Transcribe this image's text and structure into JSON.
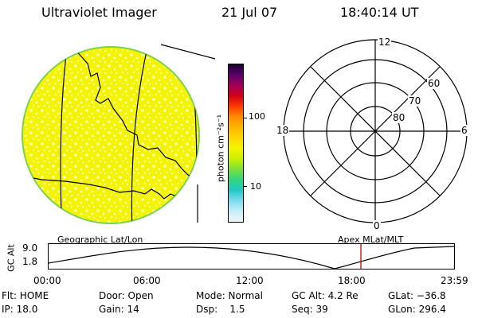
{
  "header": {
    "instrument": "Ultraviolet Imager",
    "date": "21 Jul 07",
    "time": "18:40:14 UT"
  },
  "map_left": {
    "label": "Geographic Lat/Lon",
    "fill_color": "#f4f400",
    "edge_color": "#7fd24a"
  },
  "colorbar": {
    "unit_label": "photon cm⁻²s⁻¹",
    "ticks": [
      "100",
      "10"
    ],
    "colors_top_to_bottom": [
      "#1a0030",
      "#5a006a",
      "#a0005a",
      "#d4001a",
      "#ff3a00",
      "#ff8c00",
      "#ffb400",
      "#ffd800",
      "#f4f400",
      "#c8f000",
      "#7ce03a",
      "#2fd67e",
      "#22c8c8",
      "#7cdcf0",
      "#c6eef8",
      "#eef6f8"
    ]
  },
  "polar_plot": {
    "label": "Apex MLat/MLT",
    "mlt_labels": {
      "top": "12",
      "right": "6",
      "bottom": "0",
      "left": "18"
    },
    "lat_labels": [
      "60",
      "70",
      "80"
    ]
  },
  "orbit_plot": {
    "ylabel": "GC Alt",
    "y_ticks": [
      "9.0",
      "1.8"
    ],
    "x_ticks": [
      "00:00",
      "06:00",
      "12:00",
      "18:00",
      "23:59"
    ],
    "marker_color": "#cc0000"
  },
  "status": {
    "row1": {
      "flt": "Flt: HOME",
      "door": "Door: Open",
      "mode": "Mode: Normal",
      "gc_alt": "GC Alt: 4.2 Re",
      "glat": "GLat: −36.8"
    },
    "row2": {
      "ip": "IP: 18.0",
      "gain": "Gain: 14",
      "dsp": "Dsp:    1.5",
      "seq": "Seq: 39",
      "glon": "GLon: 296.4"
    }
  }
}
